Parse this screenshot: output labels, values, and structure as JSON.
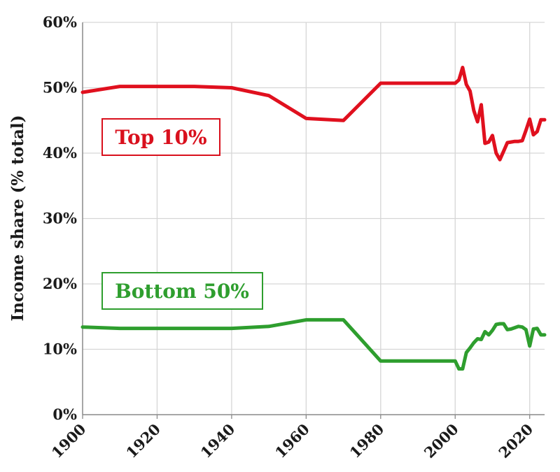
{
  "chart_data": {
    "type": "line",
    "title": "",
    "xlabel": "",
    "ylabel": "Income share (% total)",
    "xlim": [
      1900,
      2024
    ],
    "ylim": [
      0,
      60
    ],
    "x_ticks": [
      "1900",
      "1920",
      "1940",
      "1960",
      "1980",
      "2000",
      "2020"
    ],
    "y_ticks": [
      "0%",
      "10%",
      "20%",
      "30%",
      "40%",
      "50%",
      "60%"
    ],
    "grid": true,
    "legend": "inline labels",
    "series": [
      {
        "name": "Top 10%",
        "color": "#e0101e",
        "points": [
          [
            1900,
            49.3
          ],
          [
            1910,
            50.2
          ],
          [
            1920,
            50.2
          ],
          [
            1930,
            50.2
          ],
          [
            1940,
            50.0
          ],
          [
            1950,
            48.8
          ],
          [
            1960,
            45.3
          ],
          [
            1970,
            45.0
          ],
          [
            1980,
            50.7
          ],
          [
            2000,
            50.7
          ],
          [
            2001,
            51.2
          ],
          [
            2002,
            53.1
          ],
          [
            2003,
            50.5
          ],
          [
            2004,
            49.5
          ],
          [
            2005,
            46.5
          ],
          [
            2006,
            44.8
          ],
          [
            2007,
            47.4
          ],
          [
            2008,
            41.5
          ],
          [
            2009,
            41.7
          ],
          [
            2010,
            42.7
          ],
          [
            2011,
            40.0
          ],
          [
            2012,
            39.0
          ],
          [
            2013,
            40.3
          ],
          [
            2014,
            41.6
          ],
          [
            2015,
            41.7
          ],
          [
            2016,
            41.8
          ],
          [
            2017,
            41.8
          ],
          [
            2018,
            41.9
          ],
          [
            2019,
            43.5
          ],
          [
            2020,
            45.2
          ],
          [
            2021,
            42.8
          ],
          [
            2022,
            43.3
          ],
          [
            2023,
            45.1
          ],
          [
            2024,
            45.1
          ]
        ]
      },
      {
        "name": "Bottom 50%",
        "color": "#2e9e2e",
        "points": [
          [
            1900,
            13.4
          ],
          [
            1910,
            13.2
          ],
          [
            1920,
            13.2
          ],
          [
            1930,
            13.2
          ],
          [
            1940,
            13.2
          ],
          [
            1950,
            13.5
          ],
          [
            1960,
            14.5
          ],
          [
            1970,
            14.5
          ],
          [
            1980,
            8.2
          ],
          [
            2000,
            8.2
          ],
          [
            2001,
            7.0
          ],
          [
            2002,
            7.0
          ],
          [
            2003,
            9.5
          ],
          [
            2004,
            10.2
          ],
          [
            2005,
            11.0
          ],
          [
            2006,
            11.6
          ],
          [
            2007,
            11.5
          ],
          [
            2008,
            12.7
          ],
          [
            2009,
            12.2
          ],
          [
            2010,
            12.9
          ],
          [
            2011,
            13.8
          ],
          [
            2012,
            13.9
          ],
          [
            2013,
            13.9
          ],
          [
            2014,
            13.0
          ],
          [
            2015,
            13.1
          ],
          [
            2016,
            13.3
          ],
          [
            2017,
            13.5
          ],
          [
            2018,
            13.4
          ],
          [
            2019,
            13.0
          ],
          [
            2020,
            10.5
          ],
          [
            2021,
            13.1
          ],
          [
            2022,
            13.2
          ],
          [
            2023,
            12.2
          ],
          [
            2024,
            12.2
          ]
        ]
      }
    ]
  }
}
